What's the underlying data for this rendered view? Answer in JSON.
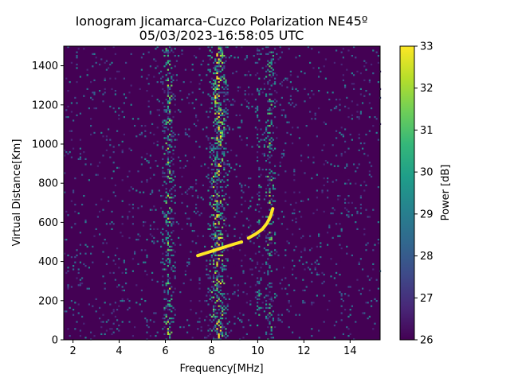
{
  "chart_data": {
    "type": "heatmap",
    "title_line1": "Ionogram Jicamarca-Cuzco Polarization NE45º",
    "title_line2": "05/03/2023-16:58:05 UTC",
    "xlabel": "Frequency[MHz]",
    "ylabel": "Virtual Distance[Km]",
    "xlim": [
      1.6,
      15.3
    ],
    "ylim": [
      0,
      1500
    ],
    "xticks": [
      2,
      4,
      6,
      8,
      10,
      12,
      14
    ],
    "yticks": [
      0,
      200,
      400,
      600,
      800,
      1000,
      1200,
      1400
    ],
    "colorbar": {
      "label": "Power [dB]",
      "min": 26,
      "max": 33,
      "ticks": [
        26,
        27,
        28,
        29,
        30,
        31,
        32,
        33
      ],
      "colormap": [
        "#440154",
        "#482878",
        "#3e4a89",
        "#31688e",
        "#26828e",
        "#1f9e89",
        "#35b779",
        "#6ece58",
        "#b5de2b",
        "#fde725"
      ]
    },
    "background_db": 26,
    "vertical_bands_mhz": [
      {
        "freq": 6.1,
        "width": 0.35,
        "intensity": 0.55
      },
      {
        "freq": 8.25,
        "width": 0.55,
        "intensity": 0.75
      },
      {
        "freq": 10.0,
        "width": 0.15,
        "intensity": 0.35
      },
      {
        "freq": 10.5,
        "width": 0.3,
        "intensity": 0.5
      }
    ],
    "traces": [
      {
        "name": "",
        "x": [
          7.4,
          7.8,
          8.2,
          8.6,
          9.0,
          9.3
        ],
        "y": [
          430,
          445,
          460,
          475,
          490,
          500
        ]
      },
      {
        "name": "",
        "x": [
          9.6,
          9.9,
          10.2,
          10.4,
          10.55,
          10.65
        ],
        "y": [
          520,
          540,
          565,
          595,
          630,
          670
        ]
      }
    ]
  }
}
